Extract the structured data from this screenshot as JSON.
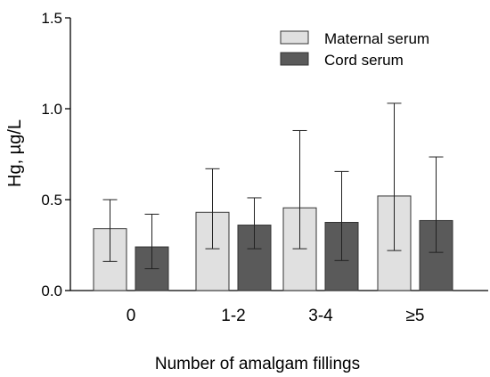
{
  "chart_data": {
    "type": "bar",
    "categories": [
      "0",
      "1-2",
      "3-4",
      "≥5"
    ],
    "series": [
      {
        "name": "Maternal serum",
        "color": "#e0e0e0",
        "values": [
          0.34,
          0.43,
          0.455,
          0.52
        ],
        "error_low": [
          0.16,
          0.23,
          0.23,
          0.22
        ],
        "error_high": [
          0.5,
          0.67,
          0.88,
          1.03
        ]
      },
      {
        "name": "Cord serum",
        "color": "#5a5a5a",
        "values": [
          0.24,
          0.36,
          0.375,
          0.385
        ],
        "error_low": [
          0.12,
          0.23,
          0.165,
          0.21
        ],
        "error_high": [
          0.42,
          0.51,
          0.655,
          0.735
        ]
      }
    ],
    "xlabel": "Number of amalgam fillings",
    "ylabel": "Hg, µg/L",
    "ylim": [
      0,
      1.5
    ],
    "yticks": [
      "0.0",
      "0.5",
      "1.0",
      "1.5"
    ],
    "legend_position": "top-right",
    "grid": false
  }
}
